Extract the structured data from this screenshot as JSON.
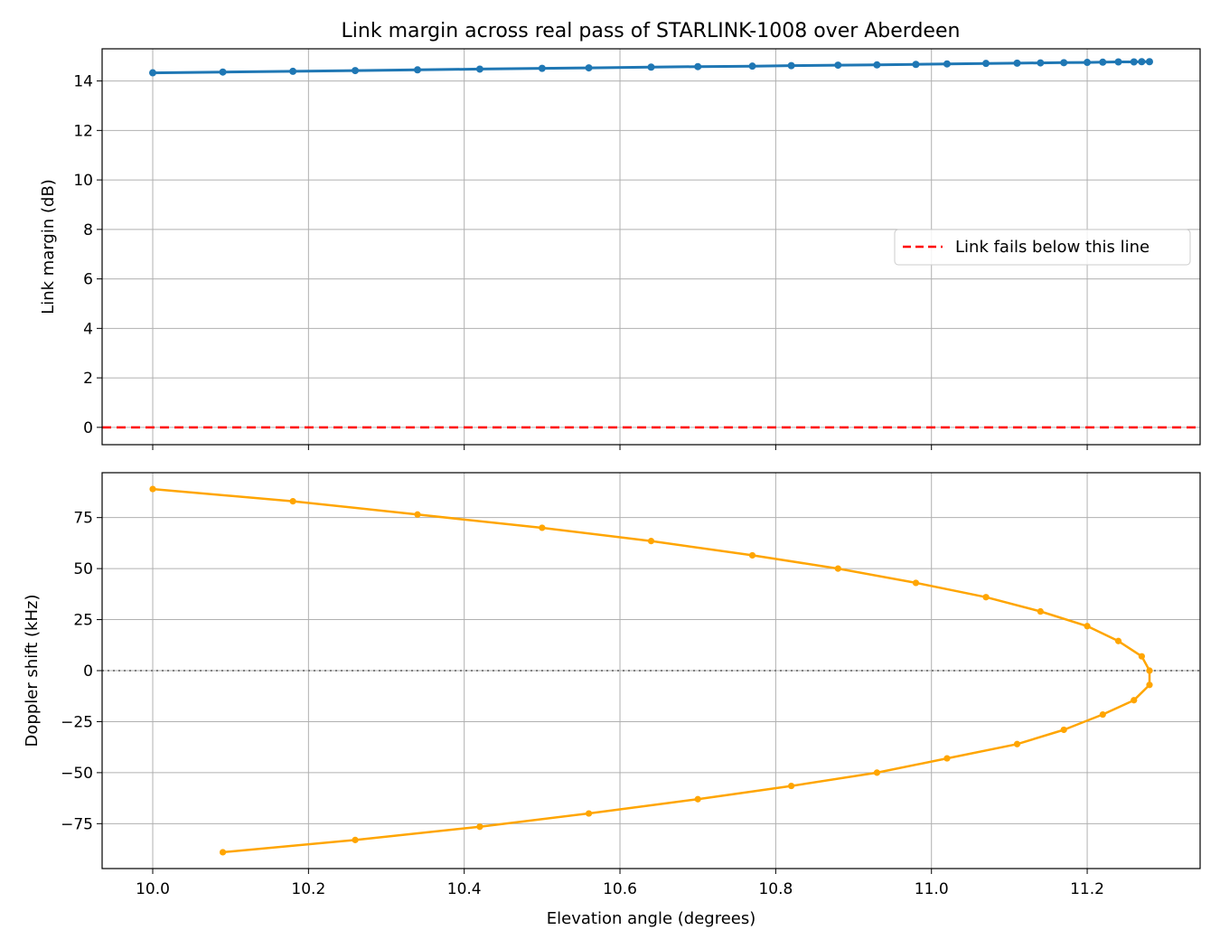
{
  "chart_data": [
    {
      "type": "line",
      "title": "Link margin across real pass of STARLINK-1008 over Aberdeen",
      "xlabel": "",
      "ylabel": "Link margin (dB)",
      "xlim": [
        9.935,
        11.345
      ],
      "ylim": [
        -0.7,
        15.3
      ],
      "xticks": [
        10.0,
        10.2,
        10.4,
        10.6,
        10.8,
        11.0,
        11.2
      ],
      "yticks": [
        0,
        2,
        4,
        6,
        8,
        10,
        12,
        14
      ],
      "grid": true,
      "series": [
        {
          "name": "",
          "color": "#1f77b4",
          "x": [
            10.0,
            10.09,
            10.18,
            10.26,
            10.34,
            10.42,
            10.5,
            10.56,
            10.64,
            10.7,
            10.77,
            10.82,
            10.88,
            10.93,
            10.98,
            11.02,
            11.07,
            11.11,
            11.14,
            11.17,
            11.2,
            11.22,
            11.24,
            11.26,
            11.27,
            11.28
          ],
          "y": [
            14.33,
            14.36,
            14.39,
            14.42,
            14.45,
            14.48,
            14.51,
            14.53,
            14.56,
            14.58,
            14.6,
            14.62,
            14.64,
            14.65,
            14.67,
            14.69,
            14.71,
            14.72,
            14.73,
            14.74,
            14.75,
            14.76,
            14.77,
            14.77,
            14.78,
            14.78
          ]
        }
      ],
      "reference_line": {
        "y": 0,
        "color": "#ff0000",
        "style": "dashed",
        "label": "Link fails below this line"
      },
      "legend": {
        "placement": "center-right",
        "entries": [
          "Link fails below this line"
        ]
      }
    },
    {
      "type": "line",
      "title": "",
      "xlabel": "Elevation angle (degrees)",
      "ylabel": "Doppler shift (kHz)",
      "xlim": [
        9.935,
        11.345
      ],
      "ylim": [
        -97,
        97
      ],
      "xticks": [
        10.0,
        10.2,
        10.4,
        10.6,
        10.8,
        11.0,
        11.2
      ],
      "xticklabels": [
        "10.0",
        "10.2",
        "10.4",
        "10.6",
        "10.8",
        "11.0",
        "11.2"
      ],
      "yticks": [
        -75,
        -50,
        -25,
        0,
        25,
        50,
        75
      ],
      "yticklabels": [
        "−75",
        "−50",
        "−25",
        "0",
        "25",
        "50",
        "75"
      ],
      "grid": true,
      "series": [
        {
          "name": "",
          "color": "#ffa500",
          "x": [
            10.0,
            10.18,
            10.34,
            10.5,
            10.64,
            10.77,
            10.88,
            10.98,
            11.07,
            11.14,
            11.2,
            11.24,
            11.27,
            11.28,
            11.28,
            11.26,
            11.22,
            11.17,
            11.11,
            11.02,
            10.93,
            10.82,
            10.7,
            10.56,
            10.42,
            10.26,
            10.09
          ],
          "y": [
            89,
            83,
            76.5,
            70,
            63.5,
            56.5,
            50,
            43,
            36,
            29,
            21.8,
            14.5,
            7,
            0,
            -7,
            -14.5,
            -21.5,
            -29,
            -36,
            -43,
            -50,
            -56.5,
            -63,
            -70,
            -76.5,
            -83,
            -89
          ]
        }
      ],
      "reference_line": {
        "y": 0,
        "color": "#808080",
        "style": "dotted",
        "label": ""
      }
    }
  ]
}
